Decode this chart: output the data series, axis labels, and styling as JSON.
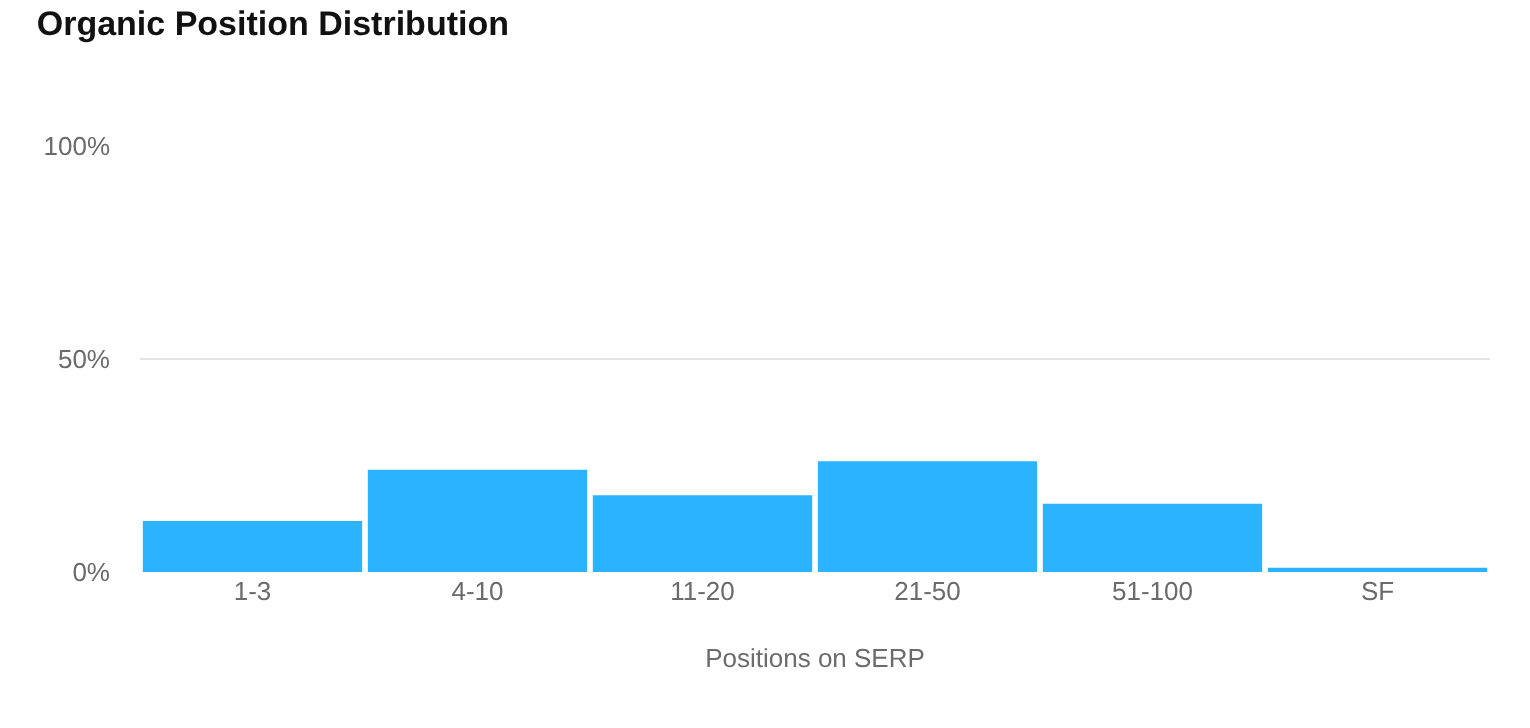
{
  "chart_data": {
    "type": "bar",
    "title": "Organic Position Distribution",
    "xlabel": "Positions on SERP",
    "categories": [
      "1-3",
      "4-10",
      "11-20",
      "21-50",
      "51-100",
      "SF"
    ],
    "values": [
      12,
      24,
      18,
      26,
      16,
      1
    ],
    "color": "#2bb3ff",
    "ylim": [
      0,
      100
    ],
    "yticks": [
      {
        "value": 0,
        "label": "0%"
      },
      {
        "value": 50,
        "label": "50%"
      },
      {
        "value": 100,
        "label": "100%"
      }
    ],
    "grid": "y",
    "legend": false
  }
}
